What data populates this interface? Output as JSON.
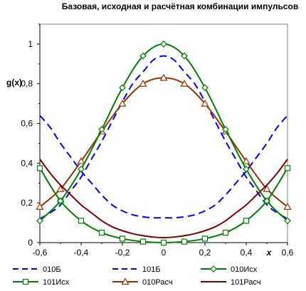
{
  "chart_data": {
    "type": "line",
    "title": "Базовая, исходная и расчётная комбинации импульсов",
    "ylabel": "g(x)",
    "xlabel": "x",
    "xlim": [
      -0.6,
      0.6
    ],
    "ylim": [
      0,
      1.1
    ],
    "xticks": [
      "-0,6",
      "-0,4",
      "-0,2",
      "0",
      "0,2",
      "0,4",
      "0,6"
    ],
    "yticks": [
      "0",
      "0,2",
      "0,4",
      "0,6",
      "0,8",
      "1"
    ],
    "xtick_values": [
      -0.6,
      -0.4,
      -0.2,
      0,
      0.2,
      0.4,
      0.6
    ],
    "ytick_values": [
      0,
      0.2,
      0.4,
      0.6,
      0.8,
      1.0
    ],
    "grid": false,
    "legend_position": "bottom",
    "series": [
      {
        "name": "010Б",
        "color": "#0000ff",
        "dash": "dashed",
        "marker": "none",
        "x": [
          -0.6,
          -0.55,
          -0.5,
          -0.45,
          -0.4,
          -0.35,
          -0.3,
          -0.25,
          -0.2,
          -0.15,
          -0.1,
          -0.05,
          0,
          0.05,
          0.1,
          0.15,
          0.2,
          0.25,
          0.3,
          0.35,
          0.4,
          0.45,
          0.5,
          0.55,
          0.6
        ],
        "y": [
          0.12,
          0.15,
          0.19,
          0.26,
          0.33,
          0.42,
          0.51,
          0.61,
          0.71,
          0.8,
          0.86,
          0.92,
          0.94,
          0.92,
          0.86,
          0.8,
          0.71,
          0.61,
          0.51,
          0.42,
          0.33,
          0.26,
          0.19,
          0.15,
          0.12
        ]
      },
      {
        "name": "101Б",
        "color": "#0000ff",
        "dash": "dashed",
        "marker": "none",
        "x": [
          -0.6,
          -0.55,
          -0.5,
          -0.45,
          -0.4,
          -0.35,
          -0.3,
          -0.25,
          -0.2,
          -0.15,
          -0.1,
          -0.05,
          0,
          0.05,
          0.1,
          0.15,
          0.2,
          0.25,
          0.3,
          0.35,
          0.4,
          0.45,
          0.5,
          0.55,
          0.6
        ],
        "y": [
          0.64,
          0.58,
          0.5,
          0.43,
          0.36,
          0.3,
          0.24,
          0.19,
          0.16,
          0.14,
          0.13,
          0.125,
          0.125,
          0.125,
          0.13,
          0.14,
          0.16,
          0.19,
          0.24,
          0.3,
          0.36,
          0.43,
          0.5,
          0.58,
          0.64
        ]
      },
      {
        "name": "010Исх",
        "color": "#008000",
        "dash": "solid",
        "marker": "diamond",
        "x": [
          -0.6,
          -0.5,
          -0.4,
          -0.3,
          -0.2,
          -0.1,
          0,
          0.1,
          0.2,
          0.3,
          0.4,
          0.5,
          0.6
        ],
        "y": [
          0.11,
          0.21,
          0.37,
          0.57,
          0.78,
          0.94,
          1.0,
          0.94,
          0.78,
          0.57,
          0.37,
          0.21,
          0.11
        ]
      },
      {
        "name": "101Исх",
        "color": "#008000",
        "dash": "solid",
        "marker": "square",
        "x": [
          -0.6,
          -0.5,
          -0.4,
          -0.3,
          -0.2,
          -0.1,
          0,
          0.1,
          0.2,
          0.3,
          0.4,
          0.5,
          0.6
        ],
        "y": [
          0.375,
          0.21,
          0.11,
          0.05,
          0.02,
          0.005,
          0.0,
          0.005,
          0.02,
          0.05,
          0.11,
          0.21,
          0.375
        ]
      },
      {
        "name": "010Расч",
        "color": "#993300",
        "dash": "solid",
        "marker": "triangle",
        "x": [
          -0.6,
          -0.5,
          -0.4,
          -0.3,
          -0.2,
          -0.1,
          0,
          0.1,
          0.2,
          0.3,
          0.4,
          0.5,
          0.6
        ],
        "y": [
          0.18,
          0.27,
          0.41,
          0.56,
          0.7,
          0.8,
          0.83,
          0.8,
          0.7,
          0.56,
          0.41,
          0.27,
          0.18
        ]
      },
      {
        "name": "101Расч",
        "color": "#800000",
        "dash": "solid",
        "marker": "none",
        "x": [
          -0.6,
          -0.55,
          -0.5,
          -0.45,
          -0.4,
          -0.35,
          -0.3,
          -0.25,
          -0.2,
          -0.15,
          -0.1,
          -0.05,
          0,
          0.05,
          0.1,
          0.15,
          0.2,
          0.25,
          0.3,
          0.35,
          0.4,
          0.45,
          0.5,
          0.55,
          0.6
        ],
        "y": [
          0.42,
          0.35,
          0.29,
          0.24,
          0.19,
          0.15,
          0.11,
          0.08,
          0.06,
          0.045,
          0.035,
          0.028,
          0.025,
          0.028,
          0.035,
          0.045,
          0.06,
          0.08,
          0.11,
          0.15,
          0.19,
          0.24,
          0.29,
          0.35,
          0.42
        ]
      }
    ]
  }
}
